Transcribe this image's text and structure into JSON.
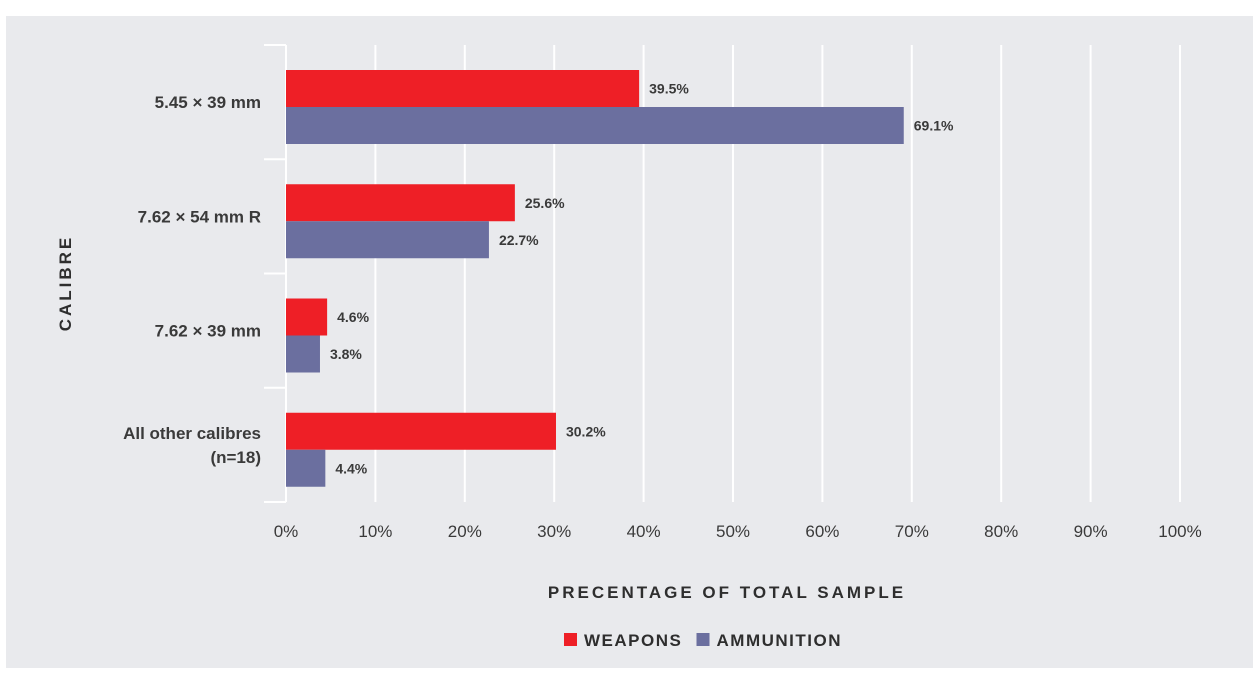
{
  "chart_data": {
    "type": "bar",
    "orientation": "horizontal",
    "title": "",
    "xlabel": "PRECENTAGE OF TOTAL SAMPLE",
    "ylabel": "CALIBRE",
    "xlim": [
      0,
      100
    ],
    "x_ticks": [
      "0%",
      "10%",
      "20%",
      "30%",
      "40%",
      "50%",
      "60%",
      "70%",
      "80%",
      "90%",
      "100%"
    ],
    "categories": [
      [
        "5.45 × 39 mm"
      ],
      [
        "7.62 × 54 mm R"
      ],
      [
        "7.62 × 39 mm"
      ],
      [
        "All other calibres",
        "(n=18)"
      ]
    ],
    "series": [
      {
        "name": "WEAPONS",
        "color": "#ee1f26",
        "values": [
          39.5,
          25.6,
          4.6,
          30.2
        ],
        "labels": [
          "39.5%",
          "25.6%",
          "4.6%",
          "30.2%"
        ]
      },
      {
        "name": "AMMUNITION",
        "color": "#6b6f9f",
        "values": [
          69.1,
          22.7,
          3.8,
          4.4
        ],
        "labels": [
          "69.1%",
          "22.7%",
          "3.8%",
          "4.4%"
        ]
      }
    ],
    "grid": "vertical",
    "legend_position": "bottom"
  }
}
